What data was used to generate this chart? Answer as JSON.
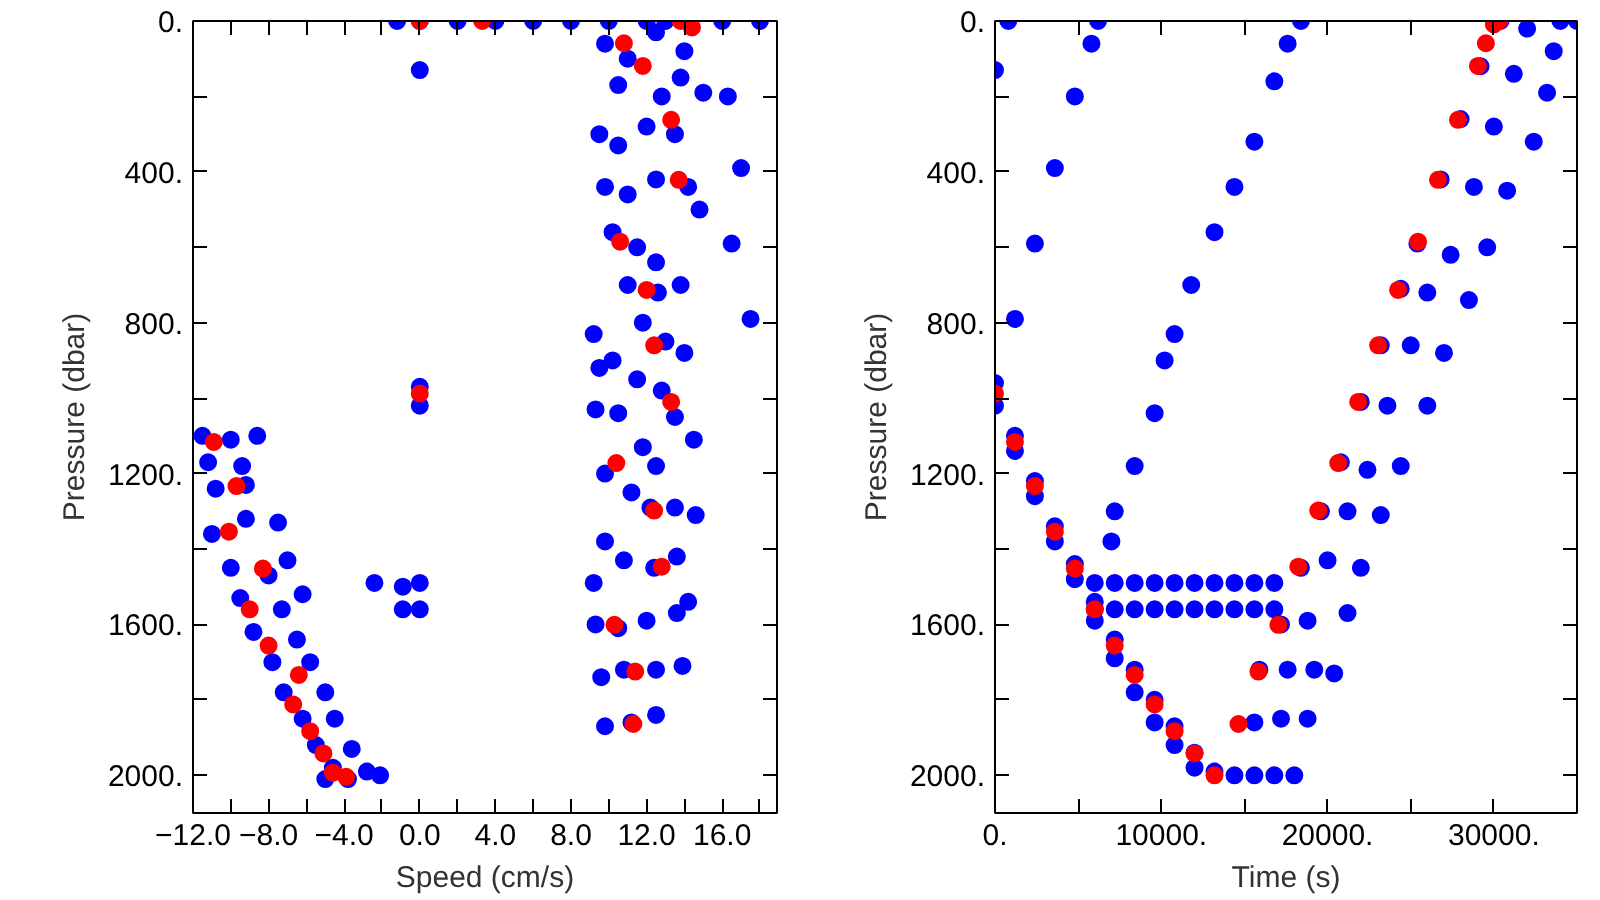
{
  "chart_data": [
    {
      "type": "scatter",
      "xlabel": "Speed (cm/s)",
      "ylabel": "Pressure (dbar)",
      "marker": "circle",
      "xlim": [
        -12,
        18.9
      ],
      "ylim": [
        2100,
        0
      ],
      "xticks": [
        {
          "value": -12,
          "label": "−12.0"
        },
        {
          "value": -10,
          "label": null
        },
        {
          "value": -8,
          "label": "−8.0"
        },
        {
          "value": -6,
          "label": null
        },
        {
          "value": -4,
          "label": "−4.0"
        },
        {
          "value": -2,
          "label": null
        },
        {
          "value": 0,
          "label": "0.0"
        },
        {
          "value": 2,
          "label": null
        },
        {
          "value": 4,
          "label": "4.0"
        },
        {
          "value": 6,
          "label": null
        },
        {
          "value": 8,
          "label": "8.0"
        },
        {
          "value": 10,
          "label": null
        },
        {
          "value": 12,
          "label": "12.0"
        },
        {
          "value": 14,
          "label": null
        },
        {
          "value": 16,
          "label": "16.0"
        },
        {
          "value": 18,
          "label": null
        }
      ],
      "yticks": [
        {
          "value": 0,
          "label": "0."
        },
        {
          "value": 200,
          "label": null
        },
        {
          "value": 400,
          "label": "400."
        },
        {
          "value": 600,
          "label": null
        },
        {
          "value": 800,
          "label": "800."
        },
        {
          "value": 1000,
          "label": null
        },
        {
          "value": 1200,
          "label": "1200."
        },
        {
          "value": 1400,
          "label": null
        },
        {
          "value": 1600,
          "label": "1600."
        },
        {
          "value": 1800,
          "label": null
        },
        {
          "value": 2000,
          "label": "2000."
        }
      ],
      "series": [
        {
          "color": "#0000ff",
          "x": [
            -1.2,
            0,
            2,
            4,
            6,
            8,
            10,
            12,
            13,
            16,
            18,
            0,
            9.8,
            11,
            12.5,
            14,
            10.5,
            12.8,
            13.8,
            15,
            16.3,
            9.5,
            10.5,
            12,
            13.5,
            9.8,
            11,
            12.5,
            14.2,
            14.8,
            17,
            16.5,
            17.5,
            10.2,
            11.5,
            12.5,
            11,
            12.6,
            13.8,
            11.8,
            13,
            14,
            9.2,
            9.5,
            10.2,
            11.5,
            12.8,
            13.5,
            14.5,
            9.3,
            10.5,
            11.8,
            12.5,
            9.8,
            11.2,
            12.2,
            13.5,
            14.6,
            9.8,
            10.8,
            12.4,
            13.6,
            9.2,
            9.3,
            10.5,
            12,
            13.6,
            14.2,
            9.6,
            10.8,
            12.5,
            13.9,
            9.8,
            11.2,
            12.5,
            0,
            0,
            -0.9,
            0,
            -0.9,
            0,
            -2.4,
            -11.5,
            -10,
            -8.6,
            -11.2,
            -9.4,
            -10.8,
            -9.2,
            -11,
            -9.2,
            -7.5,
            -10,
            -8,
            -7,
            -9.5,
            -7.3,
            -6.2,
            -8.8,
            -6.5,
            -7.8,
            -5.8,
            -7.2,
            -5,
            -6.2,
            -4.5,
            -5.5,
            -3.6,
            -4.6,
            -2.8,
            -3.8,
            -2.1,
            -5
          ],
          "values": [
            0,
            0,
            0,
            0,
            0,
            0,
            0,
            0,
            0,
            0,
            0,
            130,
            60,
            100,
            30,
            80,
            170,
            200,
            150,
            190,
            200,
            300,
            330,
            280,
            300,
            440,
            460,
            420,
            440,
            500,
            390,
            590,
            790,
            560,
            600,
            640,
            700,
            720,
            700,
            800,
            850,
            880,
            830,
            920,
            900,
            950,
            980,
            1050,
            1110,
            1030,
            1040,
            1130,
            1180,
            1200,
            1250,
            1290,
            1290,
            1310,
            1380,
            1430,
            1450,
            1420,
            1490,
            1600,
            1610,
            1590,
            1570,
            1540,
            1740,
            1720,
            1720,
            1710,
            1870,
            1860,
            1840,
            970,
            1020,
            1500,
            1490,
            1560,
            1560,
            1490,
            1100,
            1110,
            1100,
            1170,
            1180,
            1240,
            1230,
            1360,
            1320,
            1330,
            1450,
            1470,
            1430,
            1530,
            1560,
            1520,
            1620,
            1640,
            1700,
            1700,
            1780,
            1780,
            1850,
            1850,
            1920,
            1930,
            1980,
            1990,
            2010,
            2000,
            2010
          ]
        },
        {
          "color": "#ff0000",
          "x": [
            0,
            3.3,
            13.8,
            14.4,
            10.8,
            11.8,
            13.3,
            13.7,
            10.6,
            12.0,
            12.4,
            13.3,
            10.4,
            12.4,
            12.8,
            10.3,
            11.4,
            11.3,
            0,
            -10.9,
            -9.7,
            -10.1,
            -8.3,
            -9.0,
            -8.0,
            -6.4,
            -6.7,
            -5.8,
            -5.1,
            -4.6,
            -3.9
          ],
          "values": [
            0,
            0,
            0,
            17,
            59,
            119,
            262,
            421,
            585,
            713,
            860,
            1010,
            1172,
            1298,
            1447,
            1601,
            1725,
            1864,
            988,
            1116,
            1233,
            1354,
            1452,
            1560,
            1656,
            1734,
            1812,
            1883,
            1942,
            1993,
            2004
          ]
        }
      ]
    },
    {
      "type": "scatter",
      "xlabel": "Time (s)",
      "ylabel": "Pressure (dbar)",
      "marker": "circle",
      "xlim": [
        0,
        35000
      ],
      "ylim": [
        2100,
        0
      ],
      "xticks": [
        {
          "value": 0,
          "label": "0."
        },
        {
          "value": 5000,
          "label": null
        },
        {
          "value": 10000,
          "label": "10000."
        },
        {
          "value": 15000,
          "label": null
        },
        {
          "value": 20000,
          "label": "20000."
        },
        {
          "value": 25000,
          "label": null
        },
        {
          "value": 30000,
          "label": "30000."
        },
        {
          "value": 35000,
          "label": null
        }
      ],
      "yticks": [
        {
          "value": 0,
          "label": "0."
        },
        {
          "value": 200,
          "label": null
        },
        {
          "value": 400,
          "label": "400."
        },
        {
          "value": 600,
          "label": null
        },
        {
          "value": 800,
          "label": "800."
        },
        {
          "value": 1000,
          "label": null
        },
        {
          "value": 1200,
          "label": "1200."
        },
        {
          "value": 1400,
          "label": null
        },
        {
          "value": 1600,
          "label": "1600."
        },
        {
          "value": 1800,
          "label": null
        },
        {
          "value": 2000,
          "label": "2000."
        }
      ],
      "series": [
        {
          "color": "#0000ff",
          "x": [
            0,
            0,
            1200,
            1200,
            2400,
            2400,
            3600,
            3600,
            4800,
            4800,
            6000,
            6000,
            7200,
            7200,
            8400,
            8400,
            9600,
            9600,
            10800,
            10800,
            12000,
            12000,
            13200,
            14400,
            15600,
            16800,
            18000,
            6000,
            7200,
            8400,
            9600,
            10800,
            12000,
            13200,
            14400,
            15600,
            16800,
            6000,
            7200,
            8400,
            9600,
            10800,
            12000,
            13200,
            14400,
            15600,
            16800,
            0,
            800,
            1200,
            2400,
            3600,
            4800,
            5800,
            6200,
            7000,
            7200,
            8400,
            9600,
            10200,
            10800,
            11800,
            13200,
            14400,
            15600,
            16800,
            17600,
            18400,
            15600,
            17200,
            18800,
            15900,
            17600,
            19200,
            20400,
            17200,
            18800,
            21200,
            18400,
            20000,
            22000,
            19600,
            21200,
            23200,
            20800,
            22400,
            24400,
            22000,
            23600,
            26000,
            23200,
            25000,
            27000,
            24400,
            26000,
            28500,
            25400,
            27400,
            29600,
            26800,
            28800,
            30800,
            28000,
            30000,
            32400,
            29200,
            31200,
            33200,
            30400,
            32000,
            34000,
            35000,
            33600
          ],
          "values": [
            960,
            1020,
            1100,
            1140,
            1220,
            1260,
            1340,
            1380,
            1440,
            1480,
            1540,
            1590,
            1640,
            1690,
            1720,
            1780,
            1800,
            1860,
            1870,
            1920,
            1940,
            1980,
            1990,
            2000,
            2000,
            2000,
            2000,
            1490,
            1490,
            1490,
            1490,
            1490,
            1490,
            1490,
            1490,
            1490,
            1490,
            1560,
            1560,
            1560,
            1560,
            1560,
            1560,
            1560,
            1560,
            1560,
            1560,
            130,
            0,
            790,
            590,
            390,
            200,
            60,
            0,
            1380,
            1300,
            1180,
            1040,
            900,
            830,
            700,
            560,
            440,
            320,
            160,
            60,
            0,
            1860,
            1850,
            1850,
            1720,
            1720,
            1720,
            1730,
            1600,
            1590,
            1570,
            1450,
            1430,
            1450,
            1300,
            1300,
            1310,
            1170,
            1190,
            1180,
            1010,
            1020,
            1020,
            860,
            860,
            880,
            710,
            720,
            740,
            590,
            620,
            600,
            420,
            440,
            450,
            260,
            280,
            320,
            120,
            140,
            190,
            0,
            20,
            0,
            0,
            80
          ]
        },
        {
          "color": "#ff0000",
          "x": [
            0,
            1200,
            2400,
            3600,
            4800,
            6000,
            7200,
            8400,
            9600,
            10800,
            12000,
            13200,
            14640,
            15840,
            17040,
            18240,
            19440,
            20640,
            21840,
            23040,
            24240,
            25440,
            26640,
            27840,
            29040,
            29520,
            30000,
            30320
          ],
          "values": [
            988,
            1116,
            1233,
            1354,
            1452,
            1560,
            1656,
            1734,
            1812,
            1883,
            1942,
            2000,
            1864,
            1725,
            1601,
            1447,
            1298,
            1172,
            1010,
            860,
            713,
            585,
            421,
            262,
            119,
            59,
            9,
            0
          ]
        }
      ]
    }
  ]
}
